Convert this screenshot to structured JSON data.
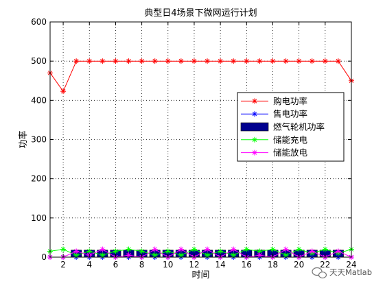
{
  "chart_data": {
    "type": "line",
    "title": "典型日4场景下微网运行计划",
    "xlabel": "时间",
    "ylabel": "功率",
    "xlim": [
      1,
      24
    ],
    "ylim": [
      0,
      600
    ],
    "xticks": [
      2,
      4,
      6,
      8,
      10,
      12,
      14,
      16,
      18,
      20,
      22,
      24
    ],
    "yticks": [
      0,
      100,
      200,
      300,
      400,
      500,
      600
    ],
    "grid": true,
    "legend_position": "right",
    "x": [
      1,
      2,
      3,
      4,
      5,
      6,
      7,
      8,
      9,
      10,
      11,
      12,
      13,
      14,
      15,
      16,
      17,
      18,
      19,
      20,
      21,
      22,
      23,
      24
    ],
    "series": [
      {
        "name": "购电功率",
        "kind": "line",
        "color": "#ff0000",
        "marker": "asterisk",
        "values": [
          470,
          423,
          500,
          500,
          500,
          500,
          500,
          500,
          500,
          500,
          500,
          500,
          500,
          500,
          500,
          500,
          500,
          500,
          500,
          500,
          500,
          500,
          500,
          450
        ]
      },
      {
        "name": "售电功率",
        "kind": "line",
        "color": "#0000ff",
        "marker": "asterisk",
        "values": [
          0,
          0,
          0,
          0,
          0,
          0,
          0,
          0,
          0,
          0,
          0,
          0,
          0,
          0,
          0,
          0,
          0,
          0,
          0,
          0,
          0,
          0,
          0,
          0
        ]
      },
      {
        "name": "燃气轮机功率",
        "kind": "bar",
        "color": "#00008f",
        "values": [
          0,
          0,
          18,
          18,
          18,
          18,
          18,
          18,
          18,
          18,
          18,
          18,
          18,
          18,
          18,
          18,
          18,
          18,
          18,
          18,
          18,
          18,
          18,
          0
        ]
      },
      {
        "name": "储能充电",
        "kind": "line",
        "color": "#00ff00",
        "marker": "asterisk",
        "values": [
          15,
          20,
          5,
          15,
          5,
          15,
          20,
          15,
          5,
          15,
          5,
          20,
          5,
          15,
          5,
          20,
          15,
          20,
          5,
          20,
          10,
          20,
          10,
          20
        ]
      },
      {
        "name": "储能放电",
        "kind": "line",
        "color": "#ff00ff",
        "marker": "asterisk",
        "values": [
          0,
          0,
          15,
          5,
          20,
          0,
          5,
          0,
          20,
          0,
          20,
          0,
          20,
          0,
          20,
          0,
          5,
          0,
          20,
          0,
          15,
          0,
          15,
          0
        ]
      }
    ]
  },
  "watermark": {
    "text": "天天Matlab",
    "icon": "wechat-icon"
  }
}
